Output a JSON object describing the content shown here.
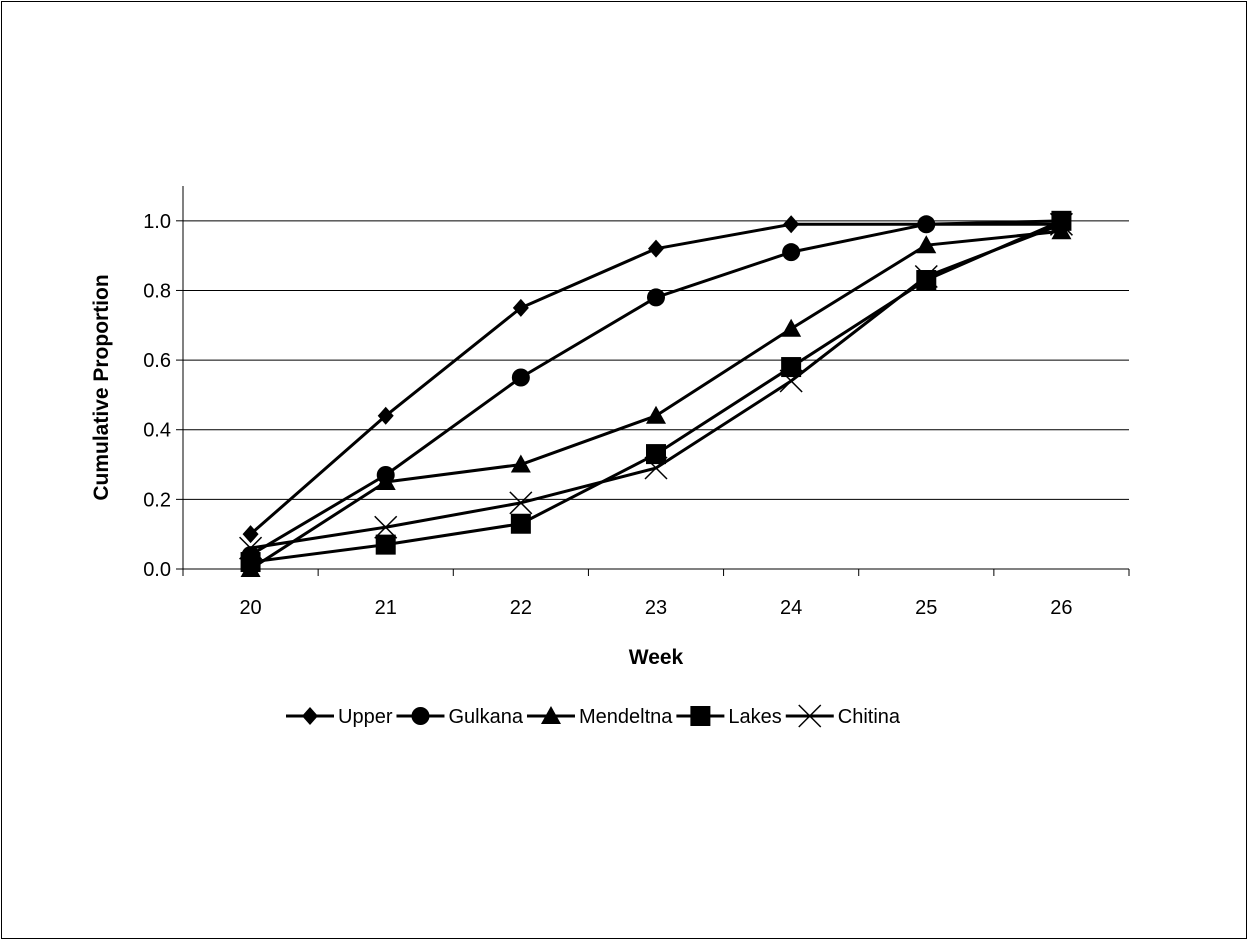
{
  "chart_data": {
    "type": "line",
    "title": "",
    "xlabel": "Week",
    "ylabel": "Cumulative Proportion",
    "x": [
      "20",
      "21",
      "22",
      "23",
      "24",
      "25",
      "26"
    ],
    "ylim": [
      0,
      1.1
    ],
    "yticks": [
      "0.0",
      "0.2",
      "0.4",
      "0.6",
      "0.8",
      "1.0"
    ],
    "grid": "horizontal",
    "legend_position": "bottom",
    "series": [
      {
        "name": "Upper",
        "marker": "diamond",
        "values": [
          0.1,
          0.44,
          0.75,
          0.92,
          0.99,
          0.99,
          1.0
        ]
      },
      {
        "name": "Gulkana",
        "marker": "circle",
        "values": [
          0.04,
          0.27,
          0.55,
          0.78,
          0.91,
          0.99,
          0.99
        ]
      },
      {
        "name": "Mendeltna",
        "marker": "triangle",
        "values": [
          0.0,
          0.25,
          0.3,
          0.44,
          0.69,
          0.93,
          0.97
        ]
      },
      {
        "name": "Lakes",
        "marker": "square",
        "values": [
          0.02,
          0.07,
          0.13,
          0.33,
          0.58,
          0.83,
          1.0
        ]
      },
      {
        "name": "Chitina",
        "marker": "x",
        "values": [
          0.06,
          0.12,
          0.19,
          0.29,
          0.54,
          0.84,
          0.99
        ]
      }
    ]
  }
}
